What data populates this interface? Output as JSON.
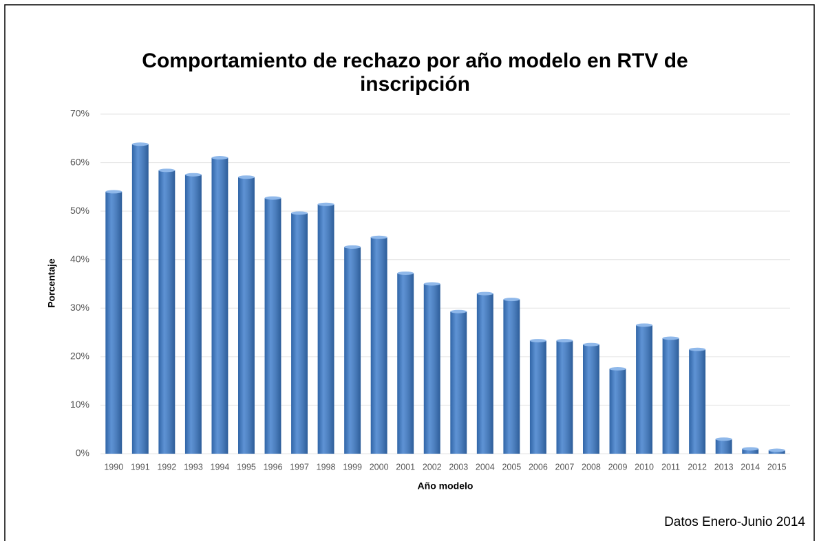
{
  "chart_data": {
    "type": "bar",
    "title": "Comportamiento de rechazo por año modelo en RTV de inscripción",
    "x_label": "Año modelo",
    "y_label": "Porcentaje",
    "note": "Datos Enero-Junio 2014",
    "categories": [
      "1990",
      "1991",
      "1992",
      "1993",
      "1994",
      "1995",
      "1996",
      "1997",
      "1998",
      "1999",
      "2000",
      "2001",
      "2002",
      "2003",
      "2004",
      "2005",
      "2006",
      "2007",
      "2008",
      "2009",
      "2010",
      "2011",
      "2012",
      "2013",
      "2014",
      "2015"
    ],
    "values": [
      54.0,
      63.8,
      58.4,
      57.5,
      61.0,
      57.0,
      52.7,
      49.6,
      51.4,
      42.6,
      44.6,
      37.2,
      35.0,
      29.3,
      33.0,
      31.8,
      23.3,
      23.3,
      22.5,
      17.5,
      26.5,
      23.8,
      21.5,
      3.0,
      1.0,
      0.7
    ],
    "color": "#3b7bcb",
    "ylim": [
      0,
      70
    ],
    "yticks": [
      {
        "value": 0,
        "label": "0%"
      },
      {
        "value": 10,
        "label": "10%"
      },
      {
        "value": 20,
        "label": "20%"
      },
      {
        "value": 30,
        "label": "30%"
      },
      {
        "value": 40,
        "label": "40%"
      },
      {
        "value": 50,
        "label": "50%"
      },
      {
        "value": 60,
        "label": "60%"
      },
      {
        "value": 70,
        "label": "70%"
      }
    ],
    "grid": true
  }
}
